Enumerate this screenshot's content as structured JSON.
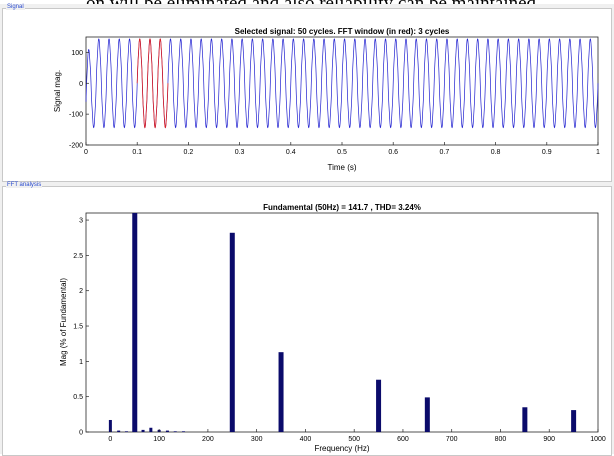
{
  "document_fragment": "on will be eliminated and also reliability can be maintained",
  "panels": {
    "signal_label": "Signal",
    "fft_label": "FFT analysis"
  },
  "colors": {
    "signal": "#1f1fd0",
    "fft_window": "#e02020",
    "bars": "#0b0b6b"
  },
  "chart_data": [
    {
      "type": "line",
      "title": "Selected signal: 50 cycles. FFT window (in red): 3 cycles",
      "xlabel": "Time (s)",
      "ylabel": "Signal mag.",
      "xlim": [
        0,
        1
      ],
      "ylim": [
        -200,
        150
      ],
      "xticks": [
        0,
        0.1,
        0.2,
        0.3,
        0.4,
        0.5,
        0.6,
        0.7,
        0.8,
        0.9,
        1
      ],
      "xtick_labels": [
        "0",
        "0.1",
        "0.2",
        "0.3",
        "0.4",
        "0.5",
        "0.6",
        "0.7",
        "0.8",
        "0.9",
        "1"
      ],
      "yticks": [
        -200,
        -100,
        0,
        100
      ],
      "ytick_labels": [
        "-200",
        "-100",
        "0",
        "100"
      ],
      "frequency_hz": 50,
      "amplitude": 141.7,
      "fft_window_s": [
        0.1,
        0.16
      ]
    },
    {
      "type": "bar",
      "title": "Fundamental (50Hz) = 141.7 , THD= 3.24%",
      "xlabel": "Frequency (Hz)",
      "ylabel": "Mag (% of Fundamental)",
      "xlim": [
        -50,
        1000
      ],
      "ylim": [
        0,
        3.1
      ],
      "xticks": [
        0,
        100,
        200,
        300,
        400,
        500,
        600,
        700,
        800,
        900,
        1000
      ],
      "xtick_labels": [
        "0",
        "100",
        "200",
        "300",
        "400",
        "500",
        "600",
        "700",
        "800",
        "900",
        "1000"
      ],
      "yticks": [
        0,
        0.5,
        1,
        1.5,
        2,
        2.5,
        3
      ],
      "ytick_labels": [
        "0",
        "0.5",
        "1",
        "1.5",
        "2",
        "2.5",
        "3"
      ],
      "x": [
        0,
        17,
        33,
        50,
        67,
        83,
        100,
        117,
        133,
        150,
        250,
        350,
        550,
        650,
        850,
        950
      ],
      "values": [
        0.17,
        0.02,
        0.01,
        3.1,
        0.03,
        0.06,
        0.03,
        0.02,
        0.01,
        0.01,
        2.82,
        1.13,
        0.74,
        0.49,
        0.35,
        0.31
      ]
    }
  ]
}
